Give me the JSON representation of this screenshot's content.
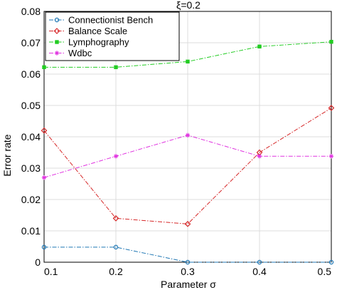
{
  "chart_data": {
    "type": "line",
    "title": "ξ=0.2",
    "xlabel": "Parameter σ",
    "ylabel": "Error rate",
    "x": [
      0.1,
      0.2,
      0.3,
      0.4,
      0.5
    ],
    "xlim": [
      0.1,
      0.5
    ],
    "ylim": [
      0,
      0.08
    ],
    "xticks": [
      "0.1",
      "0.2",
      "0.3",
      "0.4",
      "0.5"
    ],
    "yticks": [
      "0",
      "0.01",
      "0.02",
      "0.03",
      "0.04",
      "0.05",
      "0.06",
      "0.07",
      "0.08"
    ],
    "grid": true,
    "legend_position": "top-left",
    "series": [
      {
        "name": "Connectionist Bench",
        "color": "#1f77b4",
        "marker": "circle",
        "values": [
          0.0048,
          0.0048,
          0.0,
          0.0,
          0.0
        ]
      },
      {
        "name": "Balance Scale",
        "color": "#d62728",
        "marker": "diamond",
        "values": [
          0.042,
          0.014,
          0.0122,
          0.035,
          0.0492
        ]
      },
      {
        "name": "Lymphography",
        "color": "#22cc22",
        "marker": "square",
        "values": [
          0.0622,
          0.0622,
          0.064,
          0.0688,
          0.0703
        ]
      },
      {
        "name": "Wdbc",
        "color": "#e033e0",
        "marker": "star",
        "values": [
          0.027,
          0.0338,
          0.0405,
          0.0338,
          0.0338
        ]
      }
    ]
  }
}
